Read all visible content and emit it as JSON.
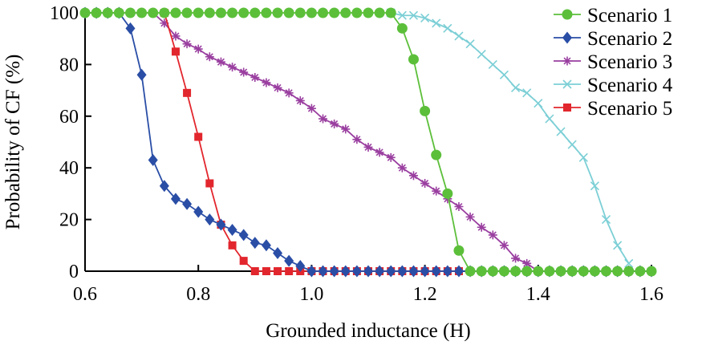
{
  "chart_data": {
    "type": "line",
    "title": "",
    "xlabel": "Grounded inductance (H)",
    "ylabel": "Probability of  CF (%)",
    "xlim": [
      0.6,
      1.6
    ],
    "ylim": [
      0,
      100
    ],
    "xticks": [
      0.6,
      0.8,
      1.0,
      1.2,
      1.4,
      1.6
    ],
    "xtick_labels": [
      "0.6",
      "0.8",
      "1.0",
      "1.2",
      "1.4",
      "1.6"
    ],
    "yticks": [
      0,
      20,
      40,
      60,
      80,
      100
    ],
    "ytick_labels": [
      "0",
      "20",
      "40",
      "60",
      "80",
      "100"
    ],
    "grid": false,
    "legend_position": "top-right",
    "series": [
      {
        "name": "Scenario 1",
        "color": "#5cbf3a",
        "marker": "circle",
        "x": [
          0.6,
          0.62,
          0.64,
          0.66,
          0.68,
          0.7,
          0.72,
          0.74,
          0.76,
          0.78,
          0.8,
          0.82,
          0.84,
          0.86,
          0.88,
          0.9,
          0.92,
          0.94,
          0.96,
          0.98,
          1.0,
          1.02,
          1.04,
          1.06,
          1.08,
          1.1,
          1.12,
          1.14,
          1.16,
          1.18,
          1.2,
          1.22,
          1.24,
          1.26,
          1.28,
          1.3,
          1.32,
          1.34,
          1.36,
          1.38,
          1.4,
          1.42,
          1.44,
          1.46,
          1.48,
          1.5,
          1.52,
          1.54,
          1.56,
          1.58,
          1.6
        ],
        "y": [
          100,
          100,
          100,
          100,
          100,
          100,
          100,
          100,
          100,
          100,
          100,
          100,
          100,
          100,
          100,
          100,
          100,
          100,
          100,
          100,
          100,
          100,
          100,
          100,
          100,
          100,
          100,
          100,
          94,
          82,
          62,
          45,
          30,
          8,
          0,
          0,
          0,
          0,
          0,
          0,
          0,
          0,
          0,
          0,
          0,
          0,
          0,
          0,
          0,
          0,
          0
        ]
      },
      {
        "name": "Scenario 2",
        "color": "#2a4ea6",
        "marker": "diamond",
        "x": [
          0.6,
          0.62,
          0.64,
          0.66,
          0.68,
          0.7,
          0.72,
          0.74,
          0.76,
          0.78,
          0.8,
          0.82,
          0.84,
          0.86,
          0.88,
          0.9,
          0.92,
          0.94,
          0.96,
          0.98,
          1.0,
          1.02,
          1.04,
          1.06,
          1.08,
          1.1,
          1.12,
          1.14,
          1.16,
          1.18,
          1.2,
          1.22,
          1.24,
          1.26,
          1.28,
          1.3,
          1.32,
          1.34,
          1.36,
          1.38,
          1.4,
          1.42,
          1.44,
          1.46,
          1.48,
          1.5,
          1.52,
          1.54,
          1.56,
          1.58,
          1.6
        ],
        "y": [
          100,
          100,
          100,
          100,
          94,
          76,
          43,
          33,
          28,
          26,
          23,
          20,
          18,
          16,
          14,
          11,
          10,
          7,
          4,
          2,
          0,
          0,
          0,
          0,
          0,
          0,
          0,
          0,
          0,
          0,
          0,
          0,
          0,
          0,
          0,
          0,
          0,
          0,
          0,
          0,
          0,
          0,
          0,
          0,
          0,
          0,
          0,
          0,
          0,
          0,
          0
        ]
      },
      {
        "name": "Scenario 3",
        "color": "#9a3fa0",
        "marker": "asterisk",
        "x": [
          0.6,
          0.62,
          0.64,
          0.66,
          0.68,
          0.7,
          0.72,
          0.74,
          0.76,
          0.78,
          0.8,
          0.82,
          0.84,
          0.86,
          0.88,
          0.9,
          0.92,
          0.94,
          0.96,
          0.98,
          1.0,
          1.02,
          1.04,
          1.06,
          1.08,
          1.1,
          1.12,
          1.14,
          1.16,
          1.18,
          1.2,
          1.22,
          1.24,
          1.26,
          1.28,
          1.3,
          1.32,
          1.34,
          1.36,
          1.38,
          1.4
        ],
        "y": [
          100,
          100,
          100,
          100,
          100,
          100,
          100,
          96,
          91,
          88,
          86,
          83,
          81,
          79,
          77,
          75,
          73,
          71,
          69,
          66,
          63,
          59,
          57,
          55,
          51,
          48,
          46,
          44,
          40,
          37,
          34,
          31,
          28,
          25,
          21,
          17,
          14,
          10,
          5,
          3,
          0
        ]
      },
      {
        "name": "Scenario 4",
        "color": "#7ccfd6",
        "marker": "x",
        "x": [
          1.14,
          1.16,
          1.18,
          1.2,
          1.22,
          1.24,
          1.26,
          1.28,
          1.3,
          1.32,
          1.34,
          1.36,
          1.38,
          1.4,
          1.42,
          1.44,
          1.46,
          1.48,
          1.5,
          1.52,
          1.54,
          1.56
        ],
        "y": [
          100,
          99,
          99,
          98,
          96,
          94,
          91,
          88,
          84,
          80,
          76,
          71,
          69,
          65,
          59,
          54,
          49,
          44,
          33,
          20,
          10,
          3
        ]
      },
      {
        "name": "Scenario 5",
        "color": "#e2262d",
        "marker": "square",
        "x": [
          0.74,
          0.76,
          0.78,
          0.8,
          0.82,
          0.84,
          0.86,
          0.88,
          0.9,
          0.92,
          0.94,
          0.96,
          0.98,
          1.0,
          1.02,
          1.04,
          1.06,
          1.08,
          1.1,
          1.12,
          1.14,
          1.16,
          1.18,
          1.2,
          1.22,
          1.24,
          1.26
        ],
        "y": [
          100,
          85,
          69,
          52,
          34,
          18,
          10,
          4,
          0,
          0,
          0,
          0,
          0,
          0,
          0,
          0,
          0,
          0,
          0,
          0,
          0,
          0,
          0,
          0,
          0,
          0,
          0
        ]
      }
    ]
  }
}
